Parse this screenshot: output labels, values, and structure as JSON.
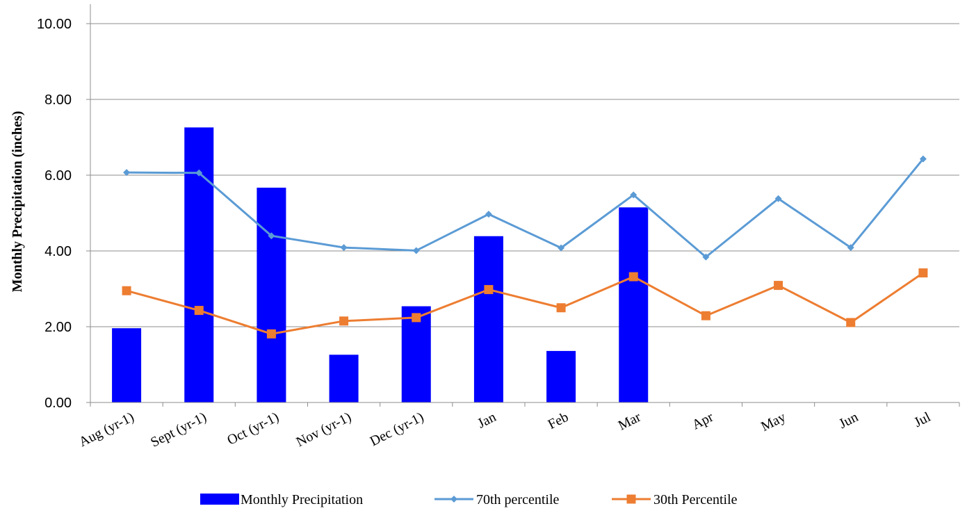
{
  "chart_data": {
    "type": "bar",
    "title": "",
    "xlabel": "",
    "ylabel": "Monthly Precipitation (inches)",
    "ylim": [
      0,
      10
    ],
    "y_ticks": [
      "0.00",
      "2.00",
      "4.00",
      "6.00",
      "8.00",
      "10.00"
    ],
    "grid": true,
    "legend_position": "bottom",
    "categories": [
      "Aug (yr-1)",
      "Sept (yr-1)",
      "Oct (yr-1)",
      "Nov (yr-1)",
      "Dec (yr-1)",
      "Jan",
      "Feb",
      "Mar",
      "Apr",
      "May",
      "Jun",
      "Jul"
    ],
    "series": [
      {
        "name": "Monthly Precipitation",
        "type": "bar",
        "color": "#0000ff",
        "values": [
          1.96,
          7.26,
          5.67,
          1.26,
          2.54,
          4.39,
          1.36,
          5.15,
          null,
          null,
          null,
          null
        ]
      },
      {
        "name": "70th percentile",
        "type": "line",
        "marker": "diamond",
        "color": "#5b9bd5",
        "values": [
          6.07,
          6.06,
          4.4,
          4.09,
          4.01,
          4.97,
          4.08,
          5.48,
          3.84,
          5.38,
          4.09,
          6.43
        ]
      },
      {
        "name": "30th Percentile",
        "type": "line",
        "marker": "square",
        "color": "#ed7d31",
        "values": [
          2.95,
          2.43,
          1.81,
          2.15,
          2.24,
          2.98,
          2.5,
          3.32,
          2.29,
          3.09,
          2.11,
          3.42
        ]
      }
    ]
  }
}
